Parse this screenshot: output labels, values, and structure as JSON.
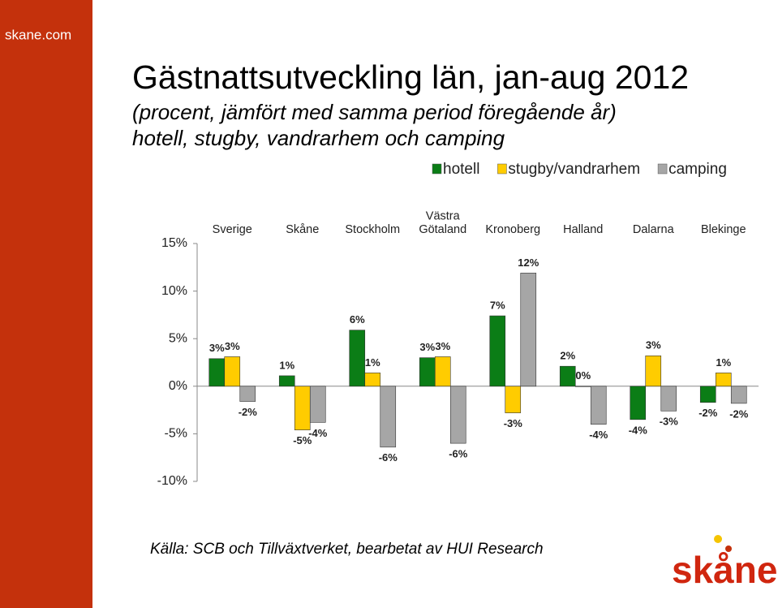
{
  "sidebar": "skane.com",
  "chart_data": {
    "type": "bar",
    "title": "Gästnattsutveckling län, jan-aug 2012",
    "subtitle": [
      "(procent, jämfört med samma period föregående år)",
      "hotell, stugby, vandrarhem och camping"
    ],
    "categories": [
      "Sverige",
      "Skåne",
      "Stockholm",
      "Västra\nGötaland",
      "Kronoberg",
      "Halland",
      "Dalarna",
      "Blekinge"
    ],
    "series": [
      {
        "name": "hotell",
        "color": "#0b7d16",
        "values": [
          2.9,
          1.1,
          5.9,
          3.0,
          7.4,
          2.1,
          -3.5,
          -1.7
        ],
        "value_labels": [
          "3%",
          "1%",
          "6%",
          "3%",
          "7%",
          "2%",
          "-4%",
          "-2%"
        ]
      },
      {
        "name": "stugby/vandrarhem",
        "color": "#ffcc00",
        "values": [
          3.1,
          -4.6,
          1.4,
          3.1,
          -2.8,
          0,
          3.2,
          1.4
        ],
        "value_labels": [
          "3%",
          "-5%",
          "1%",
          "3%",
          "-3%",
          "0%",
          "3%",
          "1%"
        ]
      },
      {
        "name": "camping",
        "color": "#a6a6a6",
        "values": [
          -1.6,
          -3.8,
          -6.4,
          -6.0,
          11.9,
          -4.0,
          -2.6,
          -1.8
        ],
        "value_labels": [
          "-2%",
          "-4%",
          "-6%",
          "-6%",
          "12%",
          "-4%",
          "-3%",
          "-2%"
        ]
      }
    ],
    "ylim": [
      -10,
      15
    ],
    "yticks": [
      {
        "value": -10,
        "label": "-10%"
      },
      {
        "value": -5,
        "label": "-5%"
      },
      {
        "value": 0,
        "label": "0%"
      },
      {
        "value": 5,
        "label": "5%"
      },
      {
        "value": 10,
        "label": "10%"
      },
      {
        "value": 15,
        "label": "15%"
      }
    ],
    "legend": "top"
  },
  "source": "Källa: SCB och Tillväxtverket, bearbetat av HUI Research",
  "logo": "skåne"
}
